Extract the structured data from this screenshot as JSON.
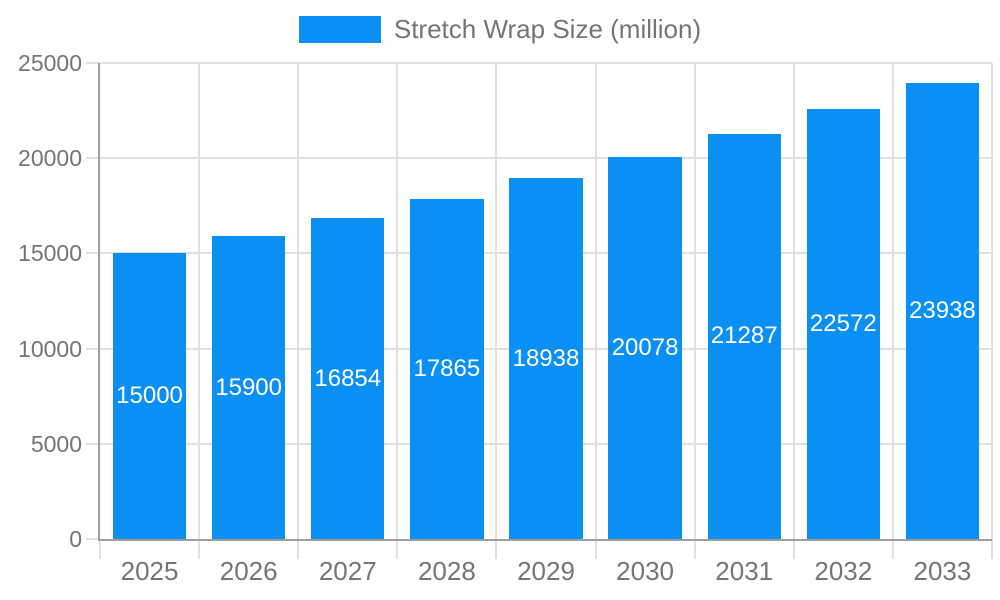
{
  "chart_data": {
    "type": "bar",
    "title": "Stretch Wrap Size (million)",
    "legend": [
      "Stretch Wrap Size (million)"
    ],
    "legend_position": "top-center",
    "categories": [
      "2025",
      "2026",
      "2027",
      "2028",
      "2029",
      "2030",
      "2031",
      "2032",
      "2033"
    ],
    "series": [
      {
        "name": "Stretch Wrap Size (million)",
        "values": [
          15000,
          15900,
          16854,
          17865,
          18938,
          20078,
          21287,
          22572,
          23938
        ]
      }
    ],
    "bar_value_labels": [
      15000,
      15900,
      16854,
      17865,
      18938,
      20078,
      21287,
      22572,
      23938
    ],
    "xlabel": "",
    "ylabel": "",
    "ylim": [
      0,
      25000
    ],
    "yticks": [
      0,
      5000,
      10000,
      15000,
      20000,
      25000
    ],
    "grid": true
  },
  "colors": {
    "bar": "#0a90f5",
    "grid_line": "#e0e0e0",
    "axis_line": "#9e9e9e",
    "tick_text": "#757575",
    "bar_label_text": "#ffffff",
    "background": "#ffffff"
  }
}
